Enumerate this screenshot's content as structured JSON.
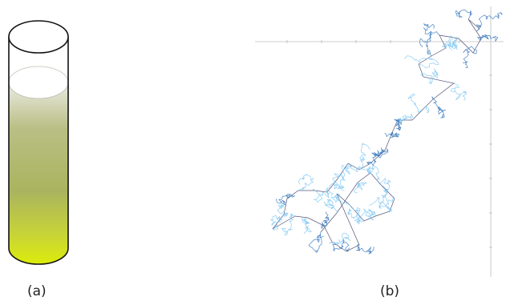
{
  "panels": {
    "a": {
      "label": "(a)"
    },
    "b": {
      "label": "(b)"
    }
  },
  "test_tube": {
    "liquid_gradient": [
      "#ecece6",
      "#b9bf85",
      "#aab45e",
      "#c9d634",
      "#dcec0a"
    ],
    "outline_color": "#111111"
  },
  "random_walk": {
    "axis_color": "#bbbbbb",
    "path_color_light": "#79c4f2",
    "path_color_dark": "#2a6fb8",
    "jump_color": "#555577"
  }
}
